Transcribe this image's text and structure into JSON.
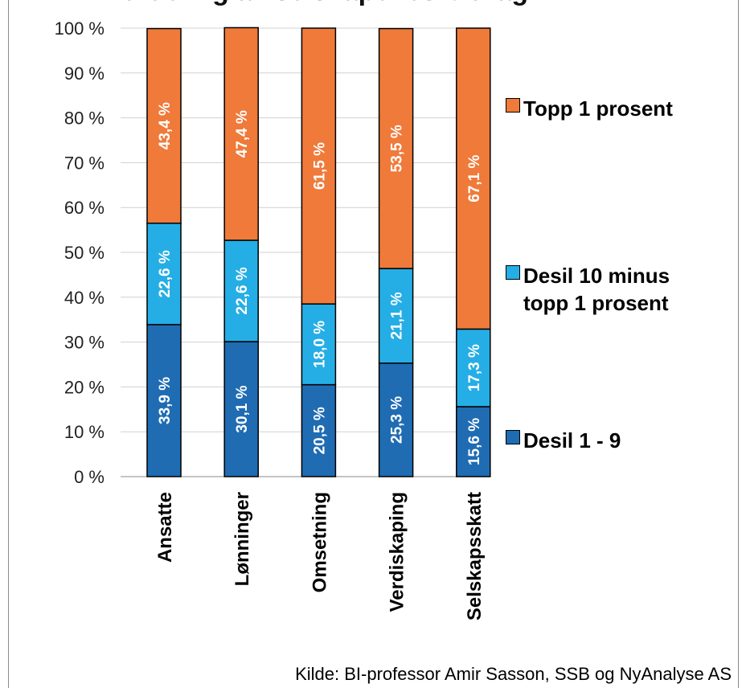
{
  "title": "Fordeling av selskapenes bidrag",
  "source": "Kilde: BI-professor Amir Sasson, SSB og NyAnalyse AS",
  "colors": {
    "decile_1_9": "#1f6cb3",
    "decile_10_minus_top1": "#25aee5",
    "top_1": "#ef7a3a"
  },
  "chart_data": {
    "type": "bar",
    "stacked": true,
    "categories": [
      "Ansatte",
      "Lønninger",
      "Omsetning",
      "Verdiskaping",
      "Selskapsskatt"
    ],
    "series": [
      {
        "name": "Desil 1 - 9",
        "values": [
          33.9,
          30.1,
          20.5,
          25.3,
          15.6
        ],
        "labels": [
          "33,9 %",
          "30,1 %",
          "20,5 %",
          "25,3 %",
          "15,6 %"
        ]
      },
      {
        "name": "Desil 10 minus topp 1 prosent",
        "values": [
          22.6,
          22.6,
          18.0,
          21.1,
          17.3
        ],
        "labels": [
          "22,6 %",
          "22,6 %",
          "18,0 %",
          "21,1 %",
          "17,3 %"
        ]
      },
      {
        "name": "Topp 1 prosent",
        "values": [
          43.4,
          47.4,
          61.5,
          53.5,
          67.1
        ],
        "labels": [
          "43,4 %",
          "47,4 %",
          "61,5 %",
          "53,5 %",
          "67,1 %"
        ]
      }
    ],
    "y_ticks": [
      "0 %",
      "10 %",
      "20 %",
      "30 %",
      "40 %",
      "50 %",
      "60 %",
      "70 %",
      "80 %",
      "90 %",
      "100 %"
    ],
    "ylim": [
      0,
      100
    ],
    "grid": true,
    "legend_position": "right"
  }
}
